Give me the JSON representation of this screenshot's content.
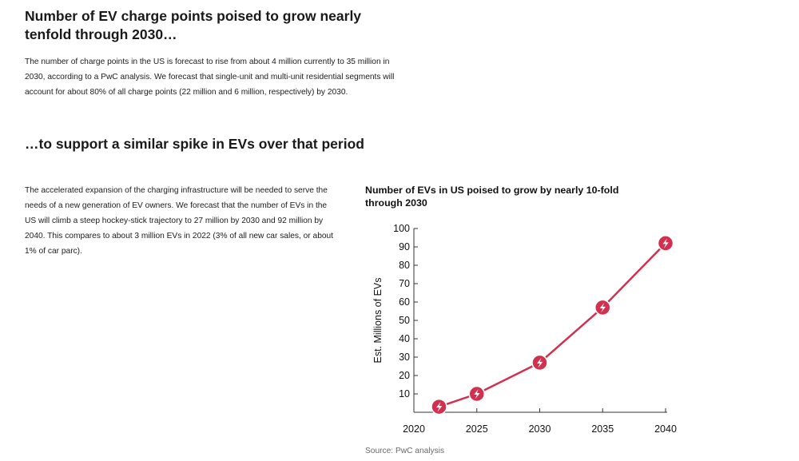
{
  "article": {
    "heading1": "Number of EV charge points poised to grow nearly tenfold through 2030…",
    "paragraph1": "The number of charge points in the US is forecast to rise from about 4 million currently to 35 million in 2030, according to a PwC analysis. We forecast that single-unit and multi-unit residential segments will account for about 80% of all charge points (22 million and 6 million, respectively) by 2030.",
    "heading2": "…to support a similar spike in EVs over that period",
    "paragraph2": "The accelerated expansion of the charging infrastructure will be needed to serve the needs of a new generation of EV owners. We forecast that the number of EVs in the US will climb a steep hockey-stick trajectory to 27 million by 2030 and 92 million by 2040. This compares to about 3 million EVs in 2022 (3% of all new car sales, or about 1% of car parc)."
  },
  "chart_data": {
    "type": "line",
    "title": "Number of EVs in US poised to grow by nearly 10-fold through 2030",
    "ylabel": "Est. Millions of EVs",
    "xlabel": "",
    "xlim": [
      2020,
      2040
    ],
    "ylim": [
      0,
      100
    ],
    "x_ticks": [
      "2020",
      "2025",
      "2030",
      "2035",
      "2040"
    ],
    "y_ticks": [
      "10",
      "20",
      "30",
      "40",
      "50",
      "60",
      "70",
      "80",
      "90",
      "100"
    ],
    "series": [
      {
        "x": [
          2022,
          2025,
          2030,
          2035,
          2040
        ],
        "values": [
          3,
          10,
          27,
          57,
          92
        ]
      }
    ],
    "marker_icon": "lightning-bolt-icon",
    "line_color": "#d1304f",
    "marker_color": "#d1304f",
    "grid": false,
    "legend": "none",
    "source": "Source: PwC analysis"
  }
}
